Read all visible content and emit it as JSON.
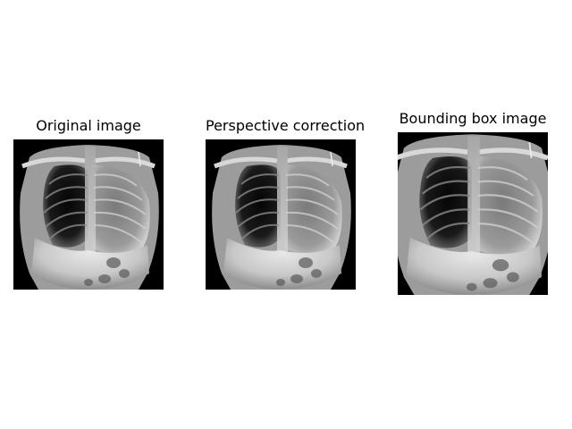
{
  "panels": [
    {
      "title": "Original image"
    },
    {
      "title": "Perspective correction"
    },
    {
      "title": "Bounding box image"
    }
  ]
}
